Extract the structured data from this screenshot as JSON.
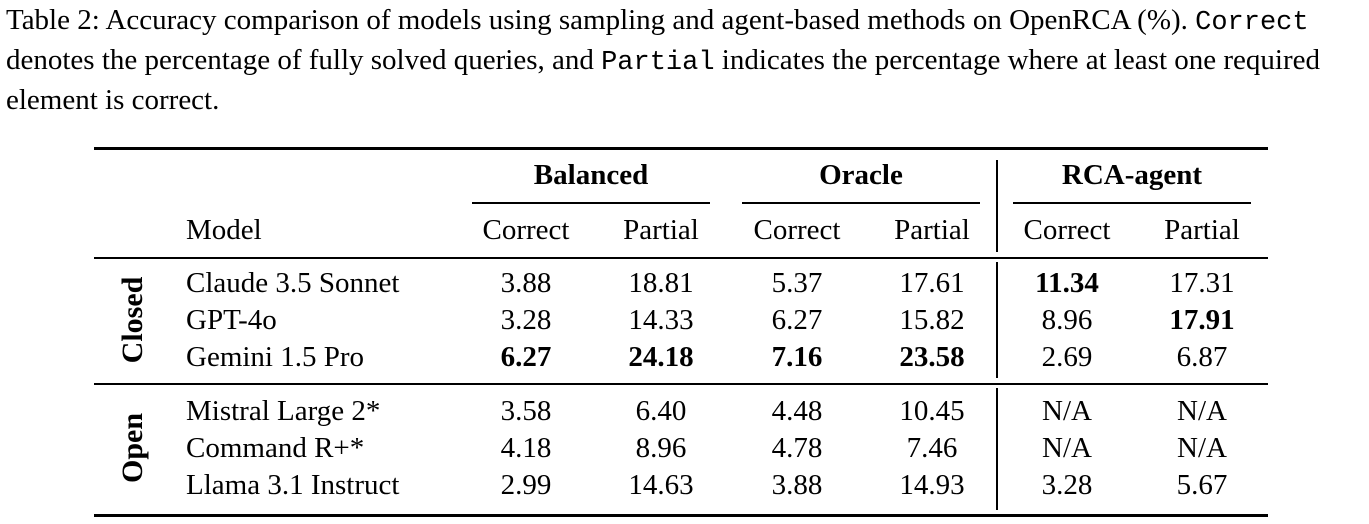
{
  "caption": {
    "prefix": "Table 2:  Accuracy comparison of models using sampling and agent-based methods on OpenRCA (%). ",
    "correct_code": "Correct",
    "mid": " denotes the percentage of fully solved queries, and ",
    "partial_code": "Partial",
    "suffix": " indicates the percentage where at least one required element is correct."
  },
  "table": {
    "model_header": "Model",
    "groups": [
      "Balanced",
      "Oracle",
      "RCA-agent"
    ],
    "subheaders": [
      "Correct",
      "Partial",
      "Correct",
      "Partial",
      "Correct",
      "Partial"
    ],
    "sections": [
      {
        "label": "Closed",
        "rows": [
          {
            "model": "Claude 3.5 Sonnet",
            "values": [
              "3.88",
              "18.81",
              "5.37",
              "17.61",
              "11.34",
              "17.31"
            ],
            "bold": [
              false,
              false,
              false,
              false,
              true,
              false
            ]
          },
          {
            "model": "GPT-4o",
            "values": [
              "3.28",
              "14.33",
              "6.27",
              "15.82",
              "8.96",
              "17.91"
            ],
            "bold": [
              false,
              false,
              false,
              false,
              false,
              true
            ]
          },
          {
            "model": "Gemini 1.5 Pro",
            "values": [
              "6.27",
              "24.18",
              "7.16",
              "23.58",
              "2.69",
              "6.87"
            ],
            "bold": [
              true,
              true,
              true,
              true,
              false,
              false
            ]
          }
        ]
      },
      {
        "label": "Open",
        "rows": [
          {
            "model": "Mistral Large 2*",
            "values": [
              "3.58",
              "6.40",
              "4.48",
              "10.45",
              "N/A",
              "N/A"
            ],
            "bold": [
              false,
              false,
              false,
              false,
              false,
              false
            ]
          },
          {
            "model": "Command R+*",
            "values": [
              "4.18",
              "8.96",
              "4.78",
              "7.46",
              "N/A",
              "N/A"
            ],
            "bold": [
              false,
              false,
              false,
              false,
              false,
              false
            ]
          },
          {
            "model": "Llama 3.1 Instruct",
            "values": [
              "2.99",
              "14.63",
              "3.88",
              "14.93",
              "3.28",
              "5.67"
            ],
            "bold": [
              false,
              false,
              false,
              false,
              false,
              false
            ]
          }
        ]
      }
    ]
  }
}
